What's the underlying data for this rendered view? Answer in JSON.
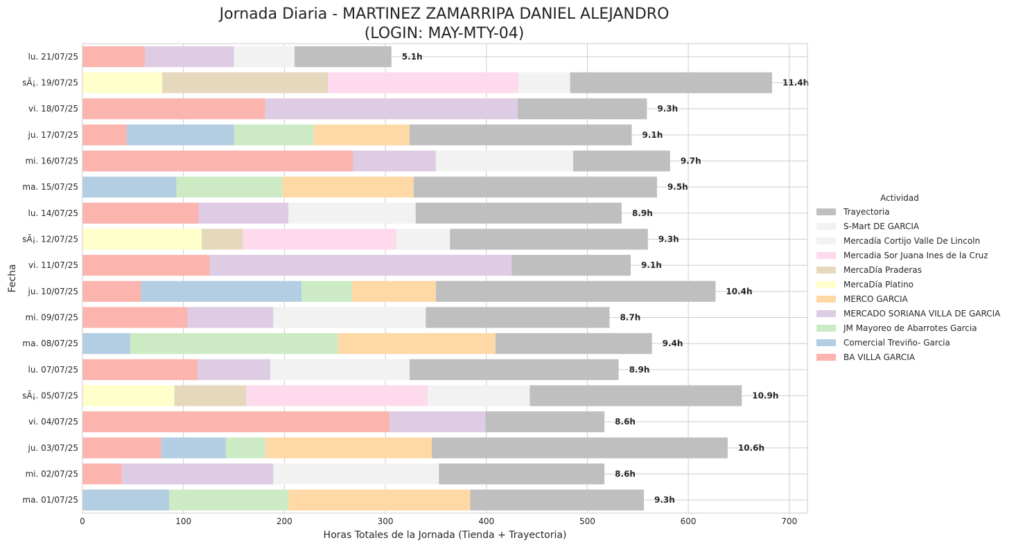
{
  "chart_data": {
    "type": "bar",
    "orientation": "horizontal",
    "stacked": true,
    "title": [
      "Jornada Diaria - MARTINEZ ZAMARRIPA DANIEL ALEJANDRO",
      "(LOGIN: MAY-MTY-04)"
    ],
    "xlabel": "Horas Totales de la Jornada (Tienda + Trayectoria)",
    "ylabel": "Fecha",
    "xlim": [
      0,
      718
    ],
    "xticks": [
      0,
      100,
      200,
      300,
      400,
      500,
      600,
      700
    ],
    "grid": true,
    "legend": {
      "title": "Actividad",
      "position": "center-right"
    },
    "colors": {
      "Trayectoria": "#bfbfbf",
      "S-Mart DE GARCIA": "#f2f2f2",
      "Mercadía Cortijo Valle De Lincoln": "#f2f2f2",
      "Mercadia Sor Juana Ines de la Cruz": "#fddaec",
      "MercaDía Praderas": "#e5d8bd",
      "MercaDía Platino": "#ffffcc",
      "MERCO GARCIA": "#fed9a6",
      "MERCADO SORIANA VILLA DE GARCIA": "#decbe4",
      "JM Mayoreo de Abarrotes Garcia": "#ccebc5",
      "Comercial Treviño- Garcia": "#b3cde3",
      "BA VILLA GARCIA": "#fbb4ae"
    },
    "legend_order": [
      "Trayectoria",
      "S-Mart DE GARCIA",
      "Mercadía Cortijo Valle De Lincoln",
      "Mercadia Sor Juana Ines de la Cruz",
      "MercaDía Praderas",
      "MercaDía Platino",
      "MERCO GARCIA",
      "MERCADO SORIANA VILLA DE GARCIA",
      "JM Mayoreo de Abarrotes Garcia",
      "Comercial Treviño- Garcia",
      "BA VILLA GARCIA"
    ],
    "rows": [
      {
        "date": "lu. 21/07/25",
        "total_label": "5.1h",
        "segments": [
          {
            "activity": "BA VILLA GARCIA",
            "value": 62
          },
          {
            "activity": "MERCADO SORIANA VILLA DE GARCIA",
            "value": 88
          },
          {
            "activity": "Mercadía Cortijo Valle De Lincoln",
            "value": 60
          },
          {
            "activity": "Trayectoria",
            "value": 96
          }
        ]
      },
      {
        "date": "sÃ¡. 19/07/25",
        "total_label": "11.4h",
        "segments": [
          {
            "activity": "MercaDía Platino",
            "value": 79
          },
          {
            "activity": "MercaDía Praderas",
            "value": 164
          },
          {
            "activity": "Mercadia Sor Juana Ines de la Cruz",
            "value": 189
          },
          {
            "activity": "S-Mart DE GARCIA",
            "value": 51
          },
          {
            "activity": "Trayectoria",
            "value": 200
          }
        ]
      },
      {
        "date": "vi. 18/07/25",
        "total_label": "9.3h",
        "segments": [
          {
            "activity": "BA VILLA GARCIA",
            "value": 181
          },
          {
            "activity": "MERCADO SORIANA VILLA DE GARCIA",
            "value": 250
          },
          {
            "activity": "Trayectoria",
            "value": 128
          }
        ]
      },
      {
        "date": "ju. 17/07/25",
        "total_label": "9.1h",
        "segments": [
          {
            "activity": "BA VILLA GARCIA",
            "value": 44
          },
          {
            "activity": "Comercial Treviño- Garcia",
            "value": 106
          },
          {
            "activity": "JM Mayoreo de Abarrotes Garcia",
            "value": 79
          },
          {
            "activity": "MERCO GARCIA",
            "value": 95
          },
          {
            "activity": "Trayectoria",
            "value": 220
          }
        ]
      },
      {
        "date": "mi. 16/07/25",
        "total_label": "9.7h",
        "segments": [
          {
            "activity": "BA VILLA GARCIA",
            "value": 268
          },
          {
            "activity": "MERCADO SORIANA VILLA DE GARCIA",
            "value": 82
          },
          {
            "activity": "Mercadía Cortijo Valle De Lincoln",
            "value": 136
          },
          {
            "activity": "Trayectoria",
            "value": 96
          }
        ]
      },
      {
        "date": "ma. 15/07/25",
        "total_label": "9.5h",
        "segments": [
          {
            "activity": "Comercial Treviño- Garcia",
            "value": 93
          },
          {
            "activity": "JM Mayoreo de Abarrotes Garcia",
            "value": 105
          },
          {
            "activity": "MERCO GARCIA",
            "value": 130
          },
          {
            "activity": "Trayectoria",
            "value": 241
          }
        ]
      },
      {
        "date": "lu. 14/07/25",
        "total_label": "8.9h",
        "segments": [
          {
            "activity": "BA VILLA GARCIA",
            "value": 115
          },
          {
            "activity": "MERCADO SORIANA VILLA DE GARCIA",
            "value": 89
          },
          {
            "activity": "Mercadía Cortijo Valle De Lincoln",
            "value": 126
          },
          {
            "activity": "Trayectoria",
            "value": 204
          }
        ]
      },
      {
        "date": "sÃ¡. 12/07/25",
        "total_label": "9.3h",
        "segments": [
          {
            "activity": "MercaDía Platino",
            "value": 118
          },
          {
            "activity": "MercaDía Praderas",
            "value": 41
          },
          {
            "activity": "Mercadia Sor Juana Ines de la Cruz",
            "value": 152
          },
          {
            "activity": "S-Mart DE GARCIA",
            "value": 53
          },
          {
            "activity": "Trayectoria",
            "value": 196
          }
        ]
      },
      {
        "date": "vi. 11/07/25",
        "total_label": "9.1h",
        "segments": [
          {
            "activity": "BA VILLA GARCIA",
            "value": 126
          },
          {
            "activity": "MERCADO SORIANA VILLA DE GARCIA",
            "value": 299
          },
          {
            "activity": "Trayectoria",
            "value": 118
          }
        ]
      },
      {
        "date": "ju. 10/07/25",
        "total_label": "10.4h",
        "segments": [
          {
            "activity": "BA VILLA GARCIA",
            "value": 58
          },
          {
            "activity": "Comercial Treviño- Garcia",
            "value": 159
          },
          {
            "activity": "JM Mayoreo de Abarrotes Garcia",
            "value": 50
          },
          {
            "activity": "MERCO GARCIA",
            "value": 83
          },
          {
            "activity": "Trayectoria",
            "value": 277
          }
        ]
      },
      {
        "date": "mi. 09/07/25",
        "total_label": "8.7h",
        "segments": [
          {
            "activity": "BA VILLA GARCIA",
            "value": 104
          },
          {
            "activity": "MERCADO SORIANA VILLA DE GARCIA",
            "value": 85
          },
          {
            "activity": "Mercadía Cortijo Valle De Lincoln",
            "value": 151
          },
          {
            "activity": "Trayectoria",
            "value": 182
          }
        ]
      },
      {
        "date": "ma. 08/07/25",
        "total_label": "9.4h",
        "segments": [
          {
            "activity": "Comercial Treviño- Garcia",
            "value": 47
          },
          {
            "activity": "JM Mayoreo de Abarrotes Garcia",
            "value": 206
          },
          {
            "activity": "MERCO GARCIA",
            "value": 156
          },
          {
            "activity": "Trayectoria",
            "value": 155
          }
        ]
      },
      {
        "date": "lu. 07/07/25",
        "total_label": "8.9h",
        "segments": [
          {
            "activity": "BA VILLA GARCIA",
            "value": 114
          },
          {
            "activity": "MERCADO SORIANA VILLA DE GARCIA",
            "value": 72
          },
          {
            "activity": "Mercadía Cortijo Valle De Lincoln",
            "value": 138
          },
          {
            "activity": "Trayectoria",
            "value": 207
          }
        ]
      },
      {
        "date": "sÃ¡. 05/07/25",
        "total_label": "10.9h",
        "segments": [
          {
            "activity": "MercaDía Platino",
            "value": 91
          },
          {
            "activity": "MercaDía Praderas",
            "value": 71
          },
          {
            "activity": "Mercadia Sor Juana Ines de la Cruz",
            "value": 180
          },
          {
            "activity": "S-Mart DE GARCIA",
            "value": 101
          },
          {
            "activity": "Trayectoria",
            "value": 210
          }
        ]
      },
      {
        "date": "vi. 04/07/25",
        "total_label": "8.6h",
        "segments": [
          {
            "activity": "BA VILLA GARCIA",
            "value": 304
          },
          {
            "activity": "MERCADO SORIANA VILLA DE GARCIA",
            "value": 95
          },
          {
            "activity": "Trayectoria",
            "value": 118
          }
        ]
      },
      {
        "date": "ju. 03/07/25",
        "total_label": "10.6h",
        "segments": [
          {
            "activity": "BA VILLA GARCIA",
            "value": 78
          },
          {
            "activity": "Comercial Treviño- Garcia",
            "value": 64
          },
          {
            "activity": "JM Mayoreo de Abarrotes Garcia",
            "value": 39
          },
          {
            "activity": "MERCO GARCIA",
            "value": 165
          },
          {
            "activity": "Trayectoria",
            "value": 293
          }
        ]
      },
      {
        "date": "mi. 02/07/25",
        "total_label": "8.6h",
        "segments": [
          {
            "activity": "BA VILLA GARCIA",
            "value": 39
          },
          {
            "activity": "MERCADO SORIANA VILLA DE GARCIA",
            "value": 150
          },
          {
            "activity": "Mercadía Cortijo Valle De Lincoln",
            "value": 164
          },
          {
            "activity": "Trayectoria",
            "value": 164
          }
        ]
      },
      {
        "date": "ma. 01/07/25",
        "total_label": "9.3h",
        "segments": [
          {
            "activity": "Comercial Treviño- Garcia",
            "value": 86
          },
          {
            "activity": "JM Mayoreo de Abarrotes Garcia",
            "value": 118
          },
          {
            "activity": "MERCO GARCIA",
            "value": 180
          },
          {
            "activity": "Trayectoria",
            "value": 172
          }
        ]
      }
    ]
  }
}
